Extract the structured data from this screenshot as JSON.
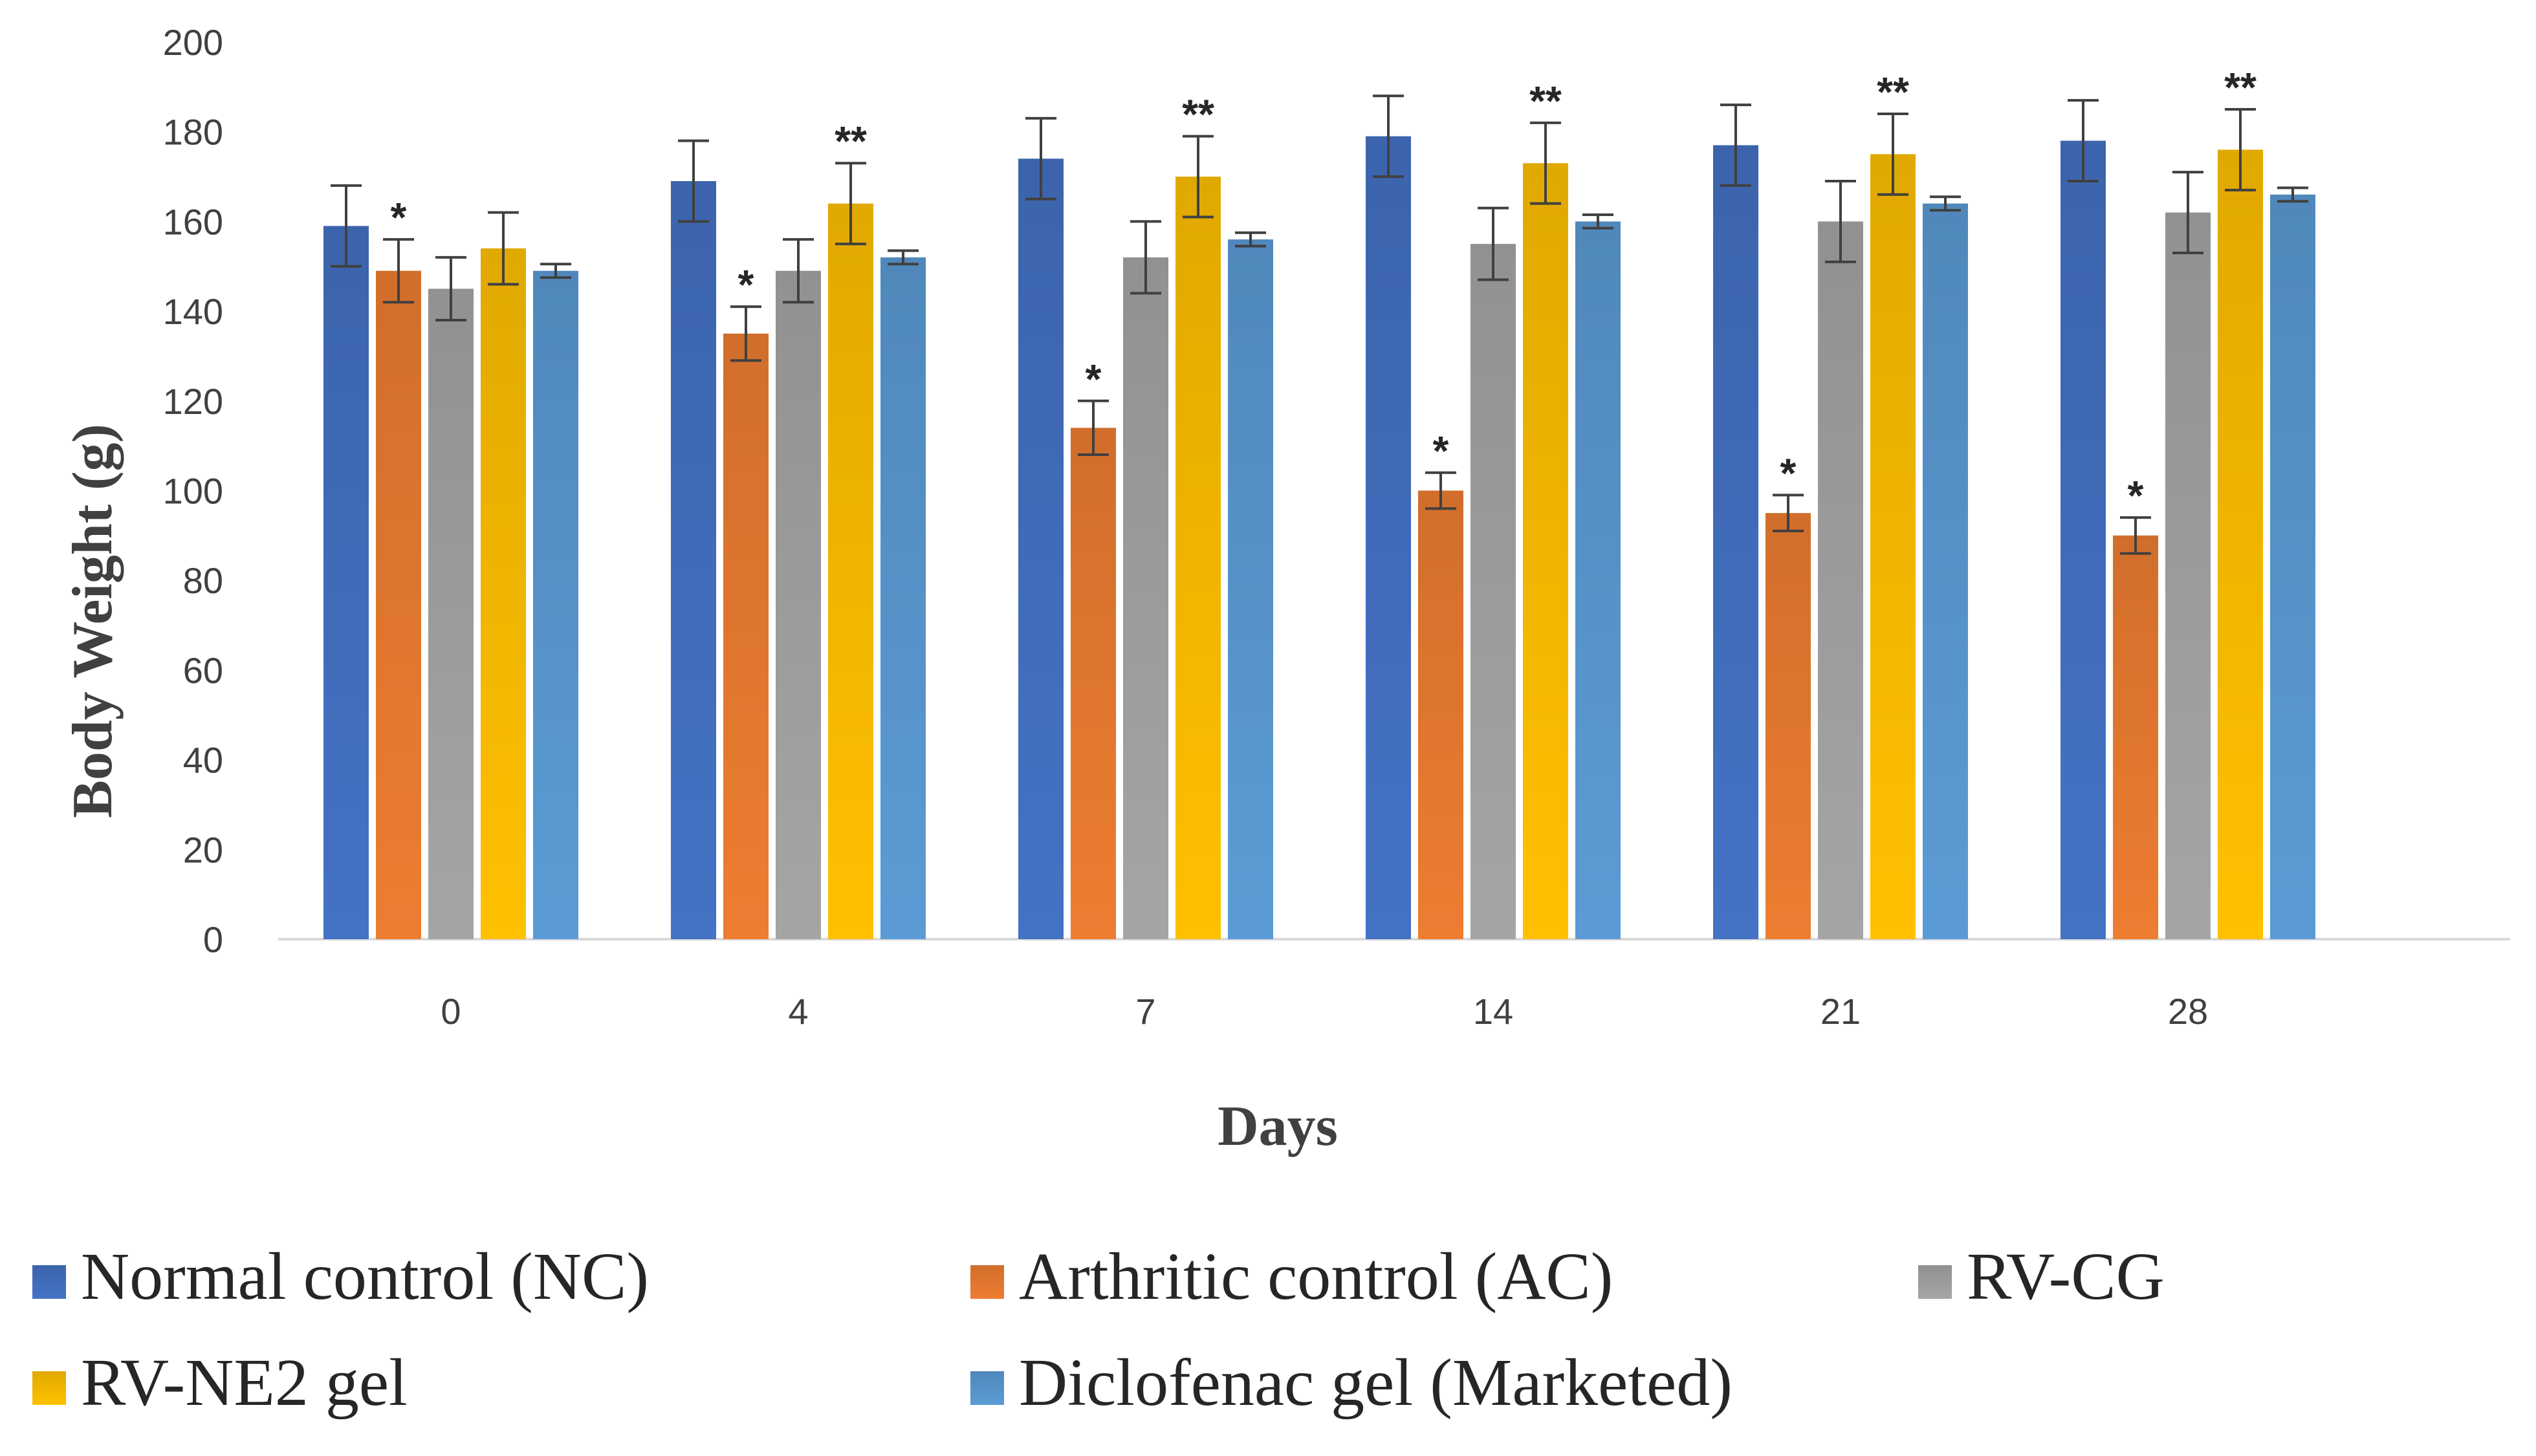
{
  "chart_data": {
    "type": "bar",
    "title": "",
    "xlabel": "Days",
    "ylabel": "Body Weight (g)",
    "ylim": [
      0,
      200
    ],
    "yticks": [
      0,
      20,
      40,
      60,
      80,
      100,
      120,
      140,
      160,
      180,
      200
    ],
    "categories": [
      "0",
      "4",
      "7",
      "14",
      "21",
      "28"
    ],
    "legend_position": "bottom",
    "series": [
      {
        "name": "Normal control (NC)",
        "color": "#4472C4",
        "values": [
          159,
          169,
          174,
          179,
          177,
          178
        ],
        "errors": [
          9,
          9,
          9,
          9,
          9,
          9
        ],
        "significance": [
          "",
          "",
          "",
          "",
          "",
          ""
        ]
      },
      {
        "name": "Arthritic control (AC)",
        "color": "#ED7D31",
        "values": [
          149,
          135,
          114,
          100,
          95,
          90
        ],
        "errors": [
          7,
          6,
          6,
          4,
          4,
          4
        ],
        "significance": [
          "*",
          "*",
          "*",
          "*",
          "*",
          "*"
        ]
      },
      {
        "name": "RV-CG",
        "color": "#A5A5A5",
        "values": [
          145,
          149,
          152,
          155,
          160,
          162
        ],
        "errors": [
          7,
          7,
          8,
          8,
          9,
          9
        ],
        "significance": [
          "",
          "",
          "",
          "",
          "",
          ""
        ]
      },
      {
        "name": "RV-NE2 gel",
        "color": "#FFC000",
        "values": [
          154,
          164,
          170,
          173,
          175,
          176
        ],
        "errors": [
          8,
          9,
          9,
          9,
          9,
          9
        ],
        "significance": [
          "",
          "**",
          "**",
          "**",
          "**",
          "**"
        ]
      },
      {
        "name": "Diclofenac gel (Marketed)",
        "color": "#5B9BD5",
        "values": [
          149,
          152,
          156,
          160,
          164,
          166
        ],
        "errors": [
          1.5,
          1.5,
          1.5,
          1.5,
          1.5,
          1.5
        ],
        "significance": [
          "",
          "",
          "",
          "",
          "",
          ""
        ]
      }
    ]
  }
}
